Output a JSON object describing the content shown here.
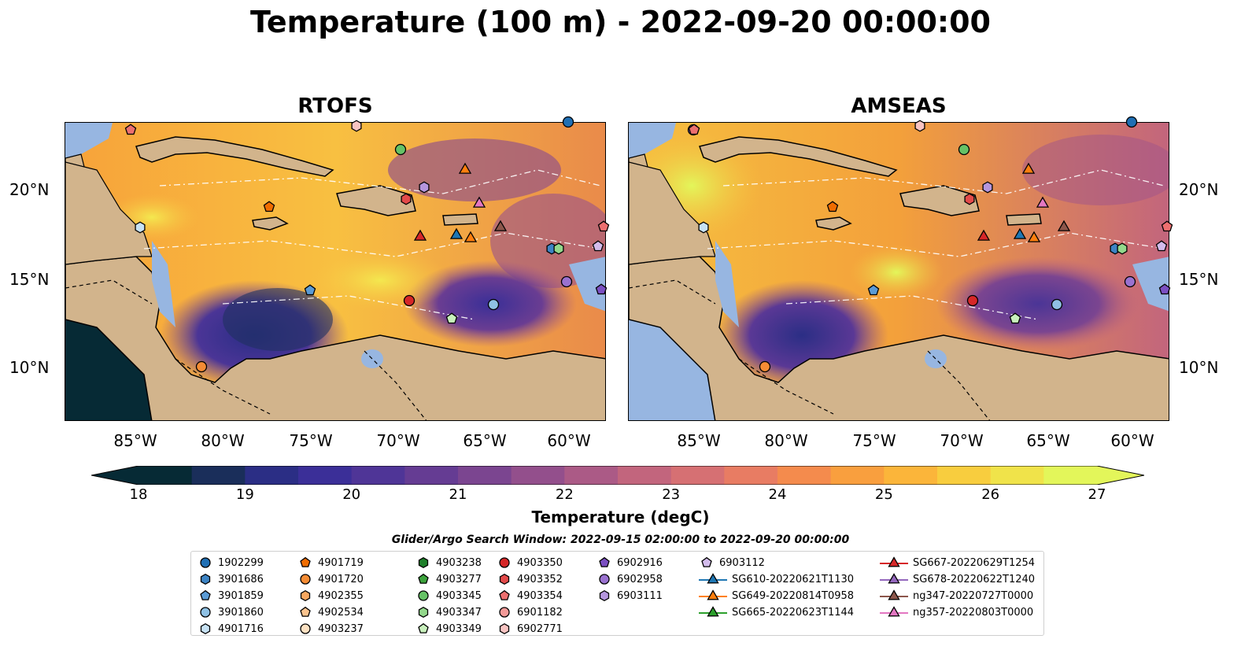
{
  "title": "Temperature (100 m) - 2022-09-20 00:00:00",
  "panels": [
    {
      "title": "RTOFS"
    },
    {
      "title": "AMSEAS"
    }
  ],
  "axes": {
    "lon_ticks": [
      "85°W",
      "80°W",
      "75°W",
      "70°W",
      "65°W",
      "60°W"
    ],
    "lat_ticks": [
      "20°N",
      "15°N",
      "10°N"
    ]
  },
  "colorbar": {
    "label": "Temperature (degC)",
    "min": 18,
    "max": 27,
    "ticks": [
      "18",
      "19",
      "20",
      "21",
      "22",
      "23",
      "24",
      "25",
      "26",
      "27"
    ],
    "extend": "both",
    "colors": [
      "#062a35",
      "#1a2e5a",
      "#2b2e85",
      "#3b2f98",
      "#4f3597",
      "#653c93",
      "#7b4590",
      "#934f8c",
      "#ab5a86",
      "#c2657d",
      "#d67073",
      "#e87c63",
      "#f48b4d",
      "#f99f3e",
      "#fbb53a",
      "#f8cd3e",
      "#f0e34a",
      "#e3f65a"
    ]
  },
  "colors": {
    "land": "#d2b48c",
    "shallow_water": "#97b6e1"
  },
  "legend": {
    "title": "Glider/Argo Search Window: 2022-09-15 02:00:00 to 2022-09-20 00:00:00",
    "items": [
      {
        "label": "1902299",
        "marker": "circle",
        "color": "#1f6fb4"
      },
      {
        "label": "3901686",
        "marker": "hexagon",
        "color": "#3d84c4"
      },
      {
        "label": "3901859",
        "marker": "pentagon",
        "color": "#5b9bd5"
      },
      {
        "label": "3901860",
        "marker": "circle",
        "color": "#8fc1e4"
      },
      {
        "label": "4901716",
        "marker": "hexagon",
        "color": "#c7e2f4"
      },
      {
        "label": "4901719",
        "marker": "pentagon",
        "color": "#ef6c00"
      },
      {
        "label": "4901720",
        "marker": "circle",
        "color": "#f58c34"
      },
      {
        "label": "4902355",
        "marker": "hexagon",
        "color": "#f9a860"
      },
      {
        "label": "4902534",
        "marker": "pentagon",
        "color": "#fbc48f"
      },
      {
        "label": "4903237",
        "marker": "circle",
        "color": "#fde1c2"
      },
      {
        "label": "4903238",
        "marker": "hexagon",
        "color": "#1e7f2a"
      },
      {
        "label": "4903277",
        "marker": "pentagon",
        "color": "#3ca33c"
      },
      {
        "label": "4903345",
        "marker": "circle",
        "color": "#66c266"
      },
      {
        "label": "4903347",
        "marker": "hexagon",
        "color": "#93d88c"
      },
      {
        "label": "4903349",
        "marker": "pentagon",
        "color": "#c8f0bc"
      },
      {
        "label": "4903350",
        "marker": "circle",
        "color": "#d62728"
      },
      {
        "label": "4903352",
        "marker": "hexagon",
        "color": "#e34a4a"
      },
      {
        "label": "4903354",
        "marker": "pentagon",
        "color": "#ec6f6f"
      },
      {
        "label": "6901182",
        "marker": "circle",
        "color": "#f39a98"
      },
      {
        "label": "6902771",
        "marker": "hexagon",
        "color": "#f9c4c2"
      },
      {
        "label": "6902916",
        "marker": "pentagon",
        "color": "#7b4fc2"
      },
      {
        "label": "6902958",
        "marker": "circle",
        "color": "#9a72d0"
      },
      {
        "label": "6903111",
        "marker": "hexagon",
        "color": "#b596dd"
      },
      {
        "label": "6903112",
        "marker": "pentagon",
        "color": "#d3bcec"
      },
      {
        "label": "SG610-20220621T1130",
        "marker": "triangle-line",
        "color": "#1f77b4"
      },
      {
        "label": "SG649-20220814T0958",
        "marker": "triangle-line",
        "color": "#ff7f0e"
      },
      {
        "label": "SG665-20220623T1144",
        "marker": "triangle-line",
        "color": "#2ca02c"
      },
      {
        "label": "SG667-20220629T1254",
        "marker": "triangle-line",
        "color": "#d62728"
      },
      {
        "label": "SG678-20220622T1240",
        "marker": "triangle-line",
        "color": "#9467bd"
      },
      {
        "label": "ng347-20220727T0000",
        "marker": "triangle-line",
        "color": "#8c564b"
      },
      {
        "label": "ng357-20220803T0000",
        "marker": "triangle-line",
        "color": "#e377c2"
      }
    ]
  }
}
